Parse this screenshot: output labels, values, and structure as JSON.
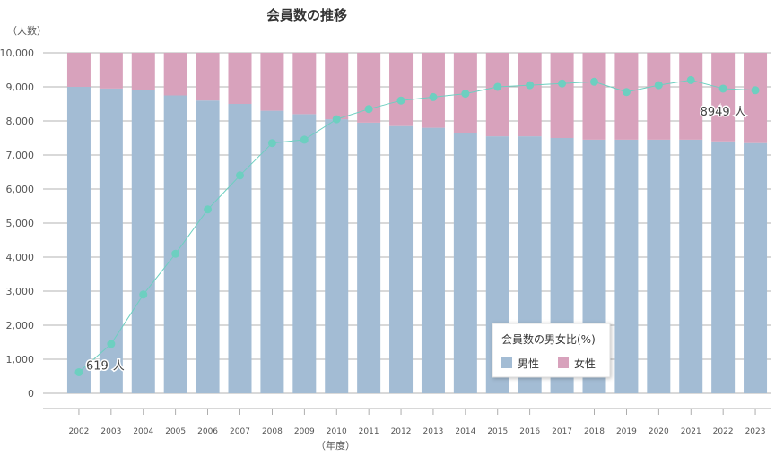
{
  "chart_data": {
    "type": "bar",
    "title": "会員数の推移",
    "y_unit_label": "（人数）",
    "xlabel": "（年度）",
    "ylim": [
      0,
      10000
    ],
    "yticks": [
      "0",
      "1,000",
      "2,000",
      "3,000",
      "4,000",
      "5,000",
      "6,000",
      "7,000",
      "8,000",
      "9,000",
      "10,000"
    ],
    "categories": [
      "2002",
      "2003",
      "2004",
      "2005",
      "2006",
      "2007",
      "2008",
      "2009",
      "2010",
      "2011",
      "2012",
      "2013",
      "2014",
      "2015",
      "2016",
      "2017",
      "2018",
      "2019",
      "2020",
      "2021",
      "2022",
      "2023"
    ],
    "stacked_ratio": {
      "legend_title": "会員数の男女比(%)",
      "series": [
        {
          "name": "男性",
          "color": "#a3bcd4",
          "values": [
            90,
            89.5,
            89,
            87.5,
            86,
            85,
            83,
            82,
            80.5,
            79.5,
            78.5,
            78,
            76.5,
            75.5,
            75.5,
            75,
            74.5,
            74.5,
            74.5,
            74.5,
            74,
            73.5
          ]
        },
        {
          "name": "女性",
          "color": "#d8a2bc",
          "values": [
            10,
            10.5,
            11,
            12.5,
            14,
            15,
            17,
            18,
            19.5,
            20.5,
            21.5,
            22,
            23.5,
            24.5,
            24.5,
            25,
            25.5,
            25.5,
            25.5,
            25.5,
            26,
            26.5
          ]
        }
      ]
    },
    "line": {
      "color": "#6dcfc0",
      "values": [
        619,
        1450,
        2900,
        4100,
        5400,
        6400,
        7350,
        7450,
        8050,
        8350,
        8600,
        8700,
        8800,
        9000,
        9050,
        9100,
        9150,
        8850,
        9050,
        9200,
        8949,
        8900
      ]
    },
    "annotations": [
      {
        "index": 0,
        "value_text": "619",
        "unit_text": "人"
      },
      {
        "index": 20,
        "value_text": "8949",
        "unit_text": "人"
      }
    ]
  }
}
